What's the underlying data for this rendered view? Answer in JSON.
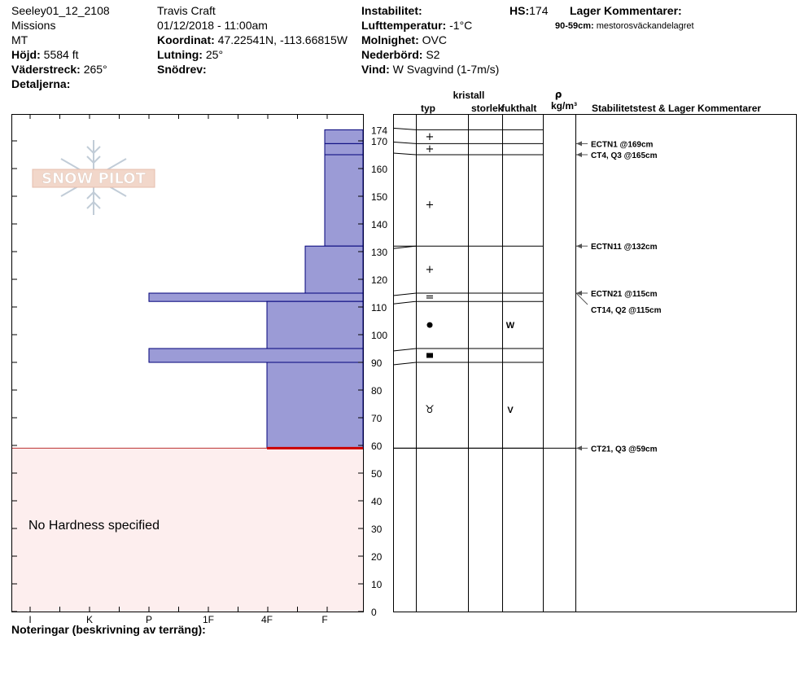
{
  "header": {
    "col1": [
      "Seeley01_12_2108",
      "Missions",
      "MT"
    ],
    "hojd_label": "Höjd:",
    "hojd_value": "5584 ft",
    "vaderstreck_label": "Väderstreck:",
    "vaderstreck_value": "265°",
    "detaljerna_label": "Detaljerna:",
    "observer": "Travis  Craft",
    "datetime": "01/12/2018 - 11:00am",
    "koordinat_label": "Koordinat:",
    "koordinat_value": "47.22541N, -113.66815W",
    "lutning_label": "Lutning:",
    "lutning_value": "25°",
    "snodrev_label": "Snödrev:",
    "instabilitet_label": "Instabilitet:",
    "lufttemp_label": "Lufttemperatur:",
    "lufttemp_value": "-1°C",
    "molnighet_label": "Molnighet:",
    "molnighet_value": "OVC",
    "nederbord_label": "Nederbörd:",
    "nederbord_value": "S2",
    "vind_label": "Vind:",
    "vind_value": "W Svagvind (1-7m/s)",
    "hs_label": "HS:",
    "hs_value": "174",
    "lager_kommentarer_label": "Lager Kommentarer:",
    "lager_comment_range": "90-59cm:",
    "lager_comment_text": "mestorosväckandelagret"
  },
  "logo_text": "SNOW PILOT",
  "no_hardness_text": "No Hardness specified",
  "notes_label": "Noteringar (beskrivning av terräng):",
  "table_headers": {
    "kristall": "kristall",
    "typ": "typ",
    "storlek": "storlek",
    "fukthalt": "fukthalt",
    "rho": "ρ",
    "density_unit": "kg/m³",
    "stability": "Stabilitetstest & Lager Kommentarer"
  },
  "colors": {
    "layer_fill": "#9b9bd6",
    "layer_stroke": "#00007a",
    "no_hardness_fill": "#fdeeee",
    "weak_layer_line": "#cc0000",
    "test_arrow": "#555555"
  },
  "chart_data": {
    "type": "snow-profile",
    "depth_unit": "cm",
    "y_range": [
      0,
      174
    ],
    "y_ticks": [
      0,
      10,
      20,
      30,
      40,
      50,
      60,
      70,
      80,
      90,
      100,
      110,
      120,
      130,
      140,
      150,
      160,
      170,
      174
    ],
    "hardness_scale": [
      "I",
      "K",
      "P",
      "1F",
      "4F",
      "F"
    ],
    "layers": [
      {
        "bottom": 169,
        "top": 174,
        "hardness": "F-",
        "grain": "+",
        "moisture": ""
      },
      {
        "bottom": 165,
        "top": 169,
        "hardness": "F-",
        "grain": "+",
        "moisture": ""
      },
      {
        "bottom": 132,
        "top": 165,
        "hardness": "F-",
        "grain": "+",
        "moisture": ""
      },
      {
        "bottom": 115,
        "top": 132,
        "hardness": "4F+",
        "grain": "+",
        "moisture": ""
      },
      {
        "bottom": 112,
        "top": 115,
        "hardness": "P",
        "grain": "=",
        "moisture": ""
      },
      {
        "bottom": 95,
        "top": 112,
        "hardness": "4F",
        "grain": "●",
        "moisture": "W"
      },
      {
        "bottom": 90,
        "top": 95,
        "hardness": "P",
        "grain": "■",
        "moisture": ""
      },
      {
        "bottom": 59,
        "top": 90,
        "hardness": "4F",
        "grain": "♉",
        "moisture": "V"
      }
    ],
    "weak_layer_depth": 59,
    "stability_tests": [
      {
        "label": "ECTN1 @169cm",
        "depth": 169
      },
      {
        "label": "CT4, Q3 @165cm",
        "depth": 165
      },
      {
        "label": "ECTN11 @132cm",
        "depth": 132
      },
      {
        "label": "ECTN21 @115cm",
        "depth": 115
      },
      {
        "label": "CT14, Q2 @115cm",
        "depth": 115
      },
      {
        "label": "CT21, Q3 @59cm",
        "depth": 59
      }
    ]
  }
}
